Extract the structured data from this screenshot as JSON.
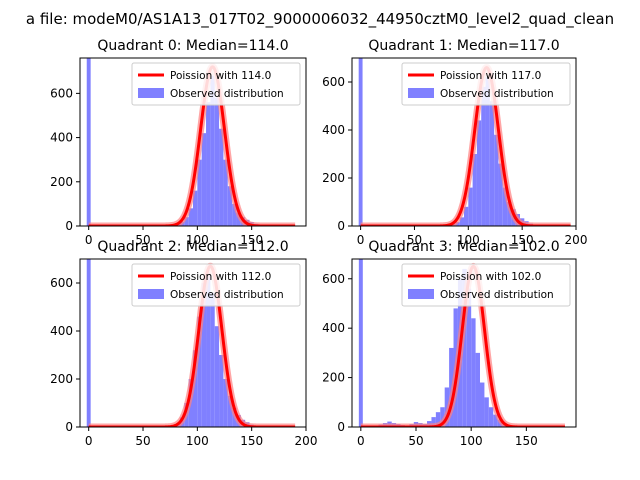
{
  "figure": {
    "suptitle": "a file: modeM0/AS1A13_017T02_9000006032_44950cztM0_level2_quad_clean"
  },
  "colors": {
    "histogram": "#8080ff",
    "poisson_line": "#ff0000",
    "poisson_glow": "#ff8080",
    "axes": "#000000",
    "background": "#ffffff"
  },
  "chart_data": [
    {
      "type": "bar",
      "title": "Quadrant 0: Median=114.0",
      "median": 114.0,
      "xlim": [
        -8,
        200
      ],
      "ylim": [
        0,
        760
      ],
      "xticks": [
        0,
        50,
        100,
        150
      ],
      "xtick_labels": [
        "0",
        "50",
        "100",
        "150"
      ],
      "yticks": [
        0,
        200,
        400,
        600
      ],
      "ytick_labels": [
        "0",
        "200",
        "400",
        "600"
      ],
      "bin_width": 4,
      "legend": {
        "poisson_label": "Poission with 114.0",
        "hist_label": "Observed distribution",
        "position": "upper right"
      },
      "spike": {
        "x": 0,
        "height": 760
      },
      "bins_start": 80,
      "counts": [
        8,
        20,
        40,
        80,
        160,
        300,
        420,
        560,
        680,
        580,
        440,
        300,
        180,
        100,
        60,
        40,
        28,
        18,
        10,
        6
      ],
      "poisson_curve": {
        "mu": 114.0,
        "sigma": 11.0,
        "peak": 720,
        "x_range": [
          0,
          190
        ]
      }
    },
    {
      "type": "bar",
      "title": "Quadrant 1: Median=117.0",
      "median": 117.0,
      "xlim": [
        -8,
        200
      ],
      "ylim": [
        0,
        700
      ],
      "xticks": [
        0,
        50,
        100,
        150,
        200
      ],
      "xtick_labels": [
        "0",
        "50",
        "100",
        "150",
        "200"
      ],
      "yticks": [
        0,
        200,
        400,
        600
      ],
      "ytick_labels": [
        "0",
        "200",
        "400",
        "600"
      ],
      "bin_width": 4,
      "legend": {
        "poisson_label": "Poission with 117.0",
        "hist_label": "Observed distribution",
        "position": "upper right"
      },
      "spike": {
        "x": 0,
        "height": 700
      },
      "bins_start": 80,
      "counts": [
        4,
        8,
        16,
        36,
        80,
        160,
        300,
        440,
        580,
        620,
        520,
        380,
        260,
        160,
        100,
        70,
        50,
        32,
        20,
        10,
        6,
        4
      ],
      "poisson_curve": {
        "mu": 117.0,
        "sigma": 11.0,
        "peak": 660,
        "x_range": [
          0,
          195
        ]
      }
    },
    {
      "type": "bar",
      "title": "Quadrant 2: Median=112.0",
      "median": 112.0,
      "xlim": [
        -8,
        200
      ],
      "ylim": [
        0,
        700
      ],
      "xticks": [
        0,
        50,
        100,
        150,
        200
      ],
      "xtick_labels": [
        "0",
        "50",
        "100",
        "150",
        "200"
      ],
      "yticks": [
        0,
        200,
        400,
        600
      ],
      "ytick_labels": [
        "0",
        "200",
        "400",
        "600"
      ],
      "bin_width": 4,
      "legend": {
        "poisson_label": "Poission with 112.0",
        "hist_label": "Observed distribution",
        "position": "upper right"
      },
      "spike": {
        "x": 0,
        "height": 700
      },
      "bins_start": 76,
      "counts": [
        6,
        12,
        40,
        100,
        200,
        320,
        460,
        600,
        640,
        560,
        420,
        300,
        200,
        130,
        80,
        50,
        30,
        20,
        10,
        5
      ],
      "poisson_curve": {
        "mu": 112.0,
        "sigma": 10.6,
        "peak": 670,
        "x_range": [
          0,
          190
        ]
      }
    },
    {
      "type": "bar",
      "title": "Quadrant 3: Median=102.0",
      "median": 102.0,
      "xlim": [
        -8,
        195
      ],
      "ylim": [
        0,
        680
      ],
      "xticks": [
        0,
        50,
        100,
        150
      ],
      "xtick_labels": [
        "0",
        "50",
        "100",
        "150"
      ],
      "yticks": [
        0,
        200,
        400,
        600
      ],
      "ytick_labels": [
        "0",
        "200",
        "400",
        "600"
      ],
      "bin_width": 4,
      "legend": {
        "poisson_label": "Poission with 102.0",
        "hist_label": "Observed distribution",
        "position": "upper right"
      },
      "spike": {
        "x": 0,
        "height": 680
      },
      "bins_start": 16,
      "counts": [
        10,
        16,
        22,
        16,
        12,
        8,
        6,
        12,
        20,
        16,
        12,
        24,
        40,
        60,
        80,
        160,
        320,
        480,
        600,
        640,
        560,
        440,
        300,
        180,
        120,
        80,
        50,
        30,
        16,
        8
      ],
      "poisson_curve": {
        "mu": 102.0,
        "sigma": 10.1,
        "peak": 650,
        "x_range": [
          0,
          185
        ]
      }
    }
  ]
}
